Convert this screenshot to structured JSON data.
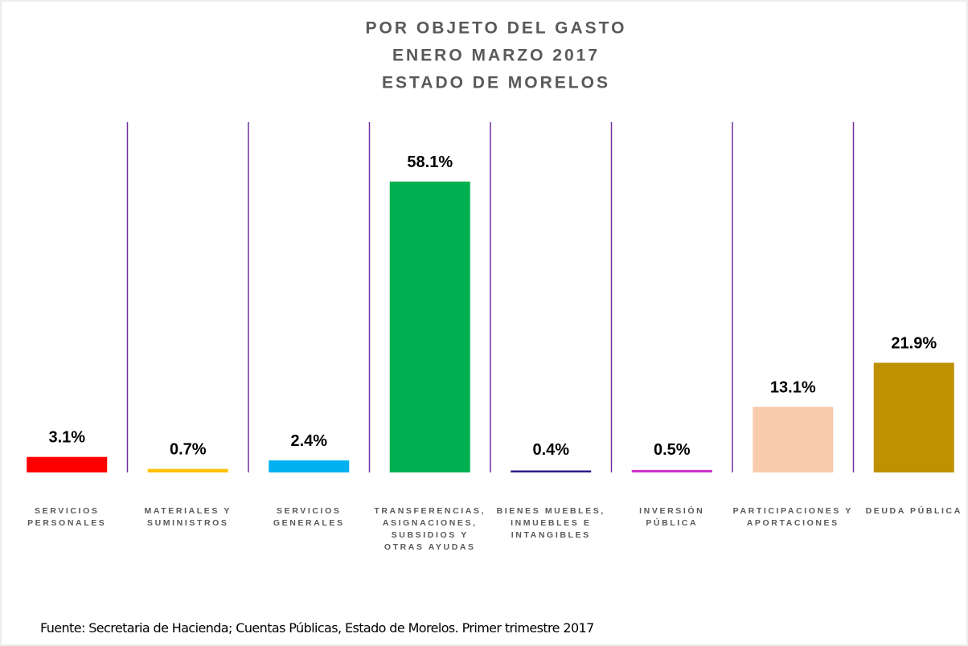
{
  "chart_data": {
    "type": "bar",
    "title": [
      "POR OBJETO DEL GASTO",
      "ENERO MARZO 2017",
      "ESTADO DE MORELOS"
    ],
    "categories": [
      "SERVICIOS PERSONALES",
      "MATERIALES Y SUMINISTROS",
      "SERVICIOS GENERALES",
      "TRANSFERENCIAS, ASIGNACIONES, SUBSIDIOS Y OTRAS AYUDAS",
      "BIENES MUEBLES, INMUEBLES E INTANGIBLES",
      "INVERSIÓN PÚBLICA",
      "PARTICIPACIONES Y APORTACIONES",
      "DEUDA PÚBLICA"
    ],
    "values": [
      3.1,
      0.7,
      2.4,
      58.1,
      0.4,
      0.5,
      13.1,
      21.9
    ],
    "value_labels": [
      "3.1%",
      "0.7%",
      "2.4%",
      "58.1%",
      "0.4%",
      "0.5%",
      "13.1%",
      "21.9%"
    ],
    "colors": [
      "#ff0000",
      "#ffc000",
      "#00b0f0",
      "#00b050",
      "#2e1a8a",
      "#cc33cc",
      "#f8cbad",
      "#bf9000"
    ],
    "source": "Fuente: Secretaria de Hacienda; Cuentas Públicas, Estado de Morelos. Primer trimestre 2017"
  }
}
